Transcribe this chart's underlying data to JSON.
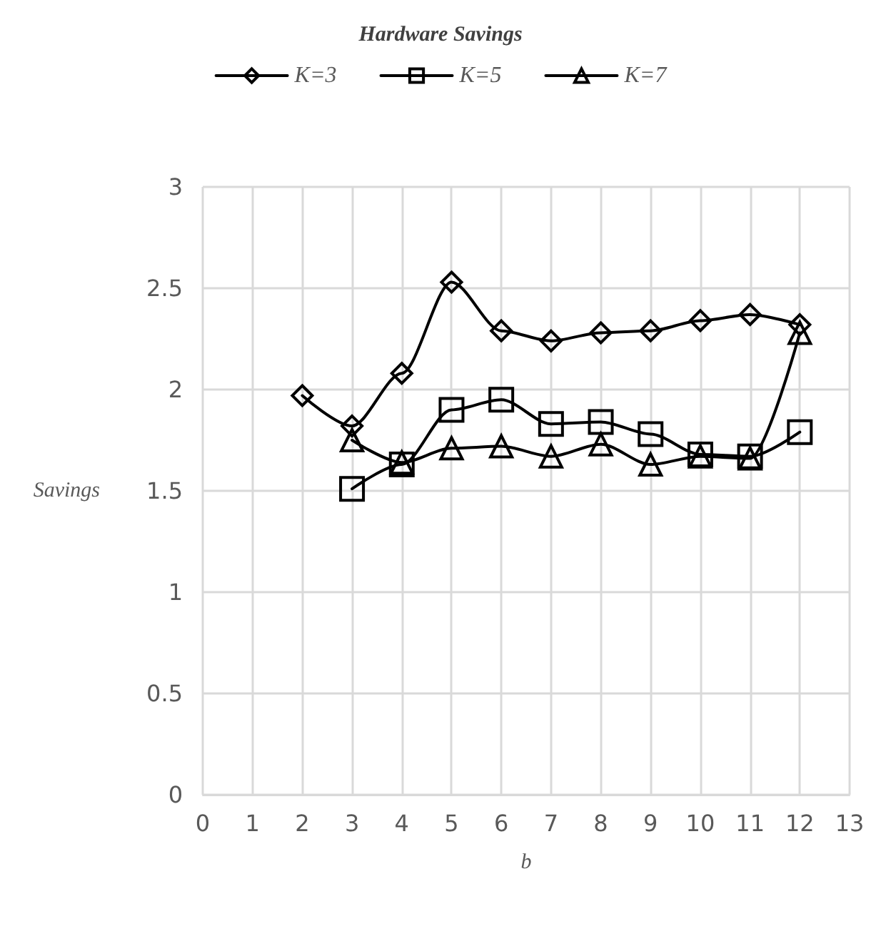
{
  "chart_data": {
    "type": "line",
    "title": "Hardware Savings",
    "xlabel": "b",
    "ylabel": "Savings",
    "x": [
      2,
      3,
      4,
      5,
      6,
      7,
      8,
      9,
      10,
      11,
      12
    ],
    "series": [
      {
        "name": "K=3",
        "color": "#000000",
        "marker": "diamond",
        "values": [
          1.97,
          1.82,
          2.08,
          2.53,
          2.29,
          2.24,
          2.28,
          2.29,
          2.34,
          2.37,
          2.32
        ]
      },
      {
        "name": "K=5",
        "color": "#000000",
        "marker": "square",
        "values": [
          null,
          1.51,
          1.63,
          1.9,
          1.95,
          1.83,
          1.84,
          1.78,
          1.68,
          1.67,
          1.79
        ]
      },
      {
        "name": "K=7",
        "color": "#000000",
        "marker": "triangle",
        "values": [
          null,
          1.75,
          1.64,
          1.71,
          1.72,
          1.67,
          1.73,
          1.63,
          1.67,
          1.66,
          2.28
        ]
      }
    ],
    "xlim": [
      0,
      13
    ],
    "xticks": [
      0,
      1,
      2,
      3,
      4,
      5,
      6,
      7,
      8,
      9,
      10,
      11,
      12,
      13
    ],
    "ylim": [
      0,
      3
    ],
    "yticks": [
      0,
      0.5,
      1,
      1.5,
      2,
      2.5,
      3
    ],
    "grid": true,
    "legend": "top",
    "line_style": "solid"
  }
}
